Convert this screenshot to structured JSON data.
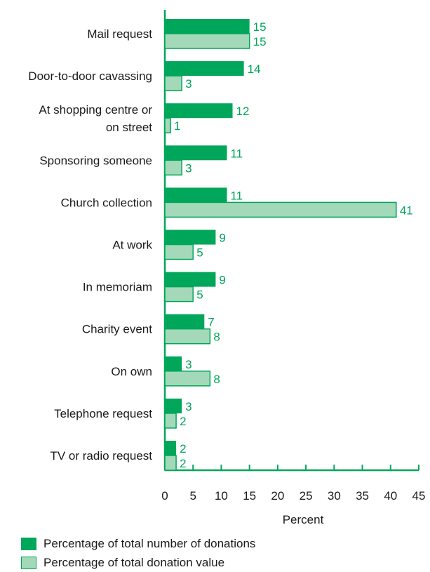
{
  "chart_data": {
    "type": "bar",
    "orientation": "horizontal",
    "categories": [
      "Mail request",
      "Door-to-door cavassing",
      "At shopping centre or on street",
      "Sponsoring someone",
      "Church collection",
      "At work",
      "In memoriam",
      "Charity event",
      "On own",
      "Telephone request",
      "TV or radio request"
    ],
    "series": [
      {
        "name": "Percentage of total number of donations",
        "values": [
          15,
          14,
          12,
          11,
          11,
          9,
          9,
          7,
          3,
          3,
          2
        ],
        "color": "#00a65a"
      },
      {
        "name": "Percentage of total donation value",
        "values": [
          15,
          3,
          1,
          3,
          41,
          5,
          5,
          8,
          8,
          2,
          2
        ],
        "color": "#a3d9b8"
      }
    ],
    "xlabel": "Percent",
    "xlim": [
      0,
      45
    ],
    "xticks": [
      "0",
      "5",
      "10",
      "15",
      "20",
      "25",
      "30",
      "35",
      "40",
      "45"
    ],
    "grid": false,
    "legend_position": "bottom-left"
  },
  "colors": {
    "axis": "#00a65a",
    "value_label": "#00a65a",
    "bar_dark": "#00a65a",
    "bar_light": "#a3d9b8",
    "bar_light_border": "#00a65a"
  }
}
